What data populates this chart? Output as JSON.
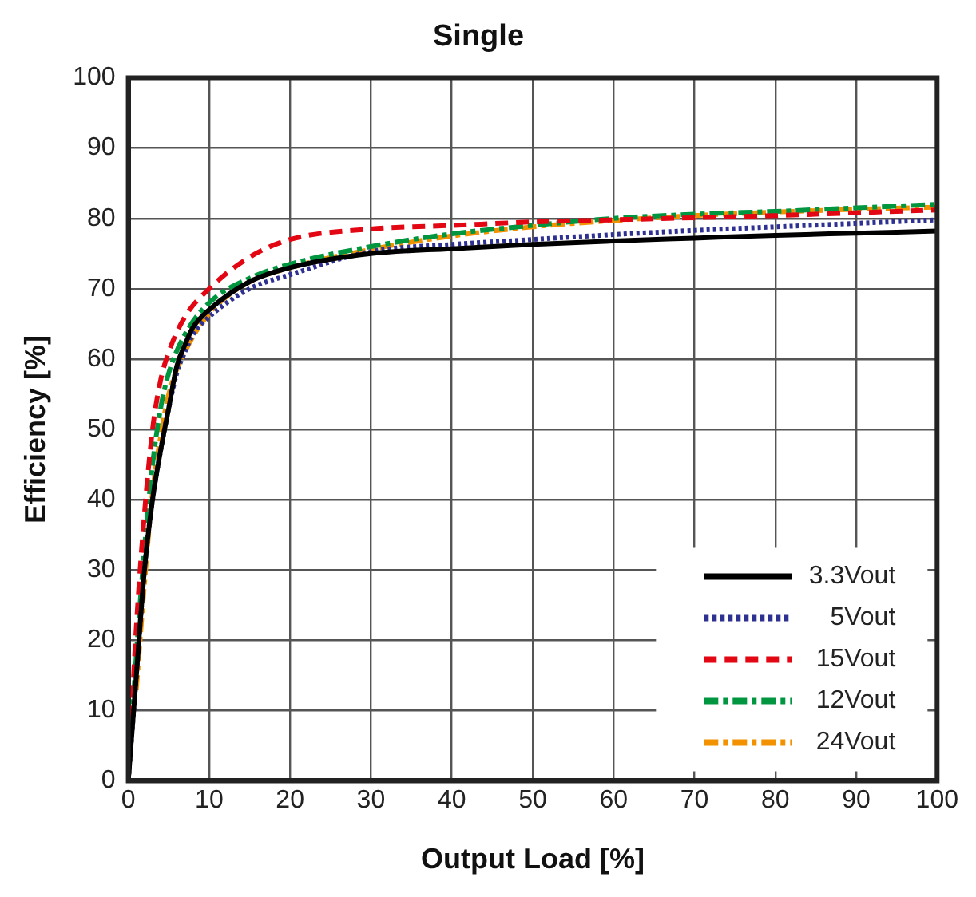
{
  "chart_data": {
    "type": "line",
    "title": "Single",
    "xlabel": "Output Load [%]",
    "ylabel": "Efficiency [%]",
    "xlim": [
      0,
      100
    ],
    "xticks": [
      0,
      10,
      20,
      30,
      40,
      50,
      60,
      70,
      80,
      90,
      100
    ],
    "ylim": [
      0,
      100
    ],
    "yticks": [
      0,
      10,
      20,
      30,
      40,
      50,
      60,
      70,
      80,
      90,
      100
    ],
    "grid": true,
    "legend": "bottom right",
    "marker": "none",
    "series": [
      {
        "name": "3.3Vout",
        "color": "#000000",
        "line_style": "solid",
        "x": [
          0,
          1,
          2,
          3,
          4,
          5,
          6,
          7,
          8,
          10,
          15,
          20,
          30,
          40,
          50,
          60,
          70,
          80,
          90,
          100
        ],
        "values": [
          0,
          15,
          30,
          40,
          47,
          53,
          59,
          62,
          64.5,
          67,
          71,
          73,
          75,
          75.7,
          76.3,
          76.8,
          77.2,
          77.6,
          77.9,
          78.2
        ]
      },
      {
        "name": "5Vout",
        "color": "#2e3192",
        "line_style": "dotted",
        "x": [
          0,
          1,
          2,
          3,
          4,
          5,
          6,
          7,
          8,
          10,
          15,
          20,
          30,
          40,
          50,
          60,
          70,
          80,
          90,
          100
        ],
        "values": [
          0,
          15,
          30,
          40,
          47,
          53,
          58,
          61,
          63.5,
          66,
          70,
          72,
          75.3,
          76.3,
          77,
          77.7,
          78.3,
          78.8,
          79.3,
          79.8
        ]
      },
      {
        "name": "15Vout",
        "color": "#e30613",
        "line_style": "dashed",
        "x": [
          0,
          1,
          2,
          3,
          4,
          5,
          7,
          10,
          15,
          20,
          30,
          40,
          50,
          60,
          70,
          80,
          90,
          100
        ],
        "values": [
          0,
          22,
          38,
          50,
          57,
          61,
          66,
          70,
          74.5,
          77,
          78.5,
          79,
          79.5,
          79.8,
          80.1,
          80.4,
          80.8,
          81.2
        ]
      },
      {
        "name": "12Vout",
        "color": "#009640",
        "line_style": "dashdot",
        "x": [
          0,
          1,
          2,
          3,
          4,
          5,
          7,
          10,
          15,
          20,
          30,
          40,
          50,
          60,
          70,
          80,
          90,
          100
        ],
        "values": [
          0,
          18,
          33,
          45,
          53,
          58,
          63.5,
          68,
          71.5,
          73.5,
          76,
          77.8,
          79,
          80,
          80.6,
          81,
          81.5,
          82
        ]
      },
      {
        "name": "24Vout",
        "color": "#f39200",
        "line_style": "dashdot",
        "x": [
          1,
          2,
          3,
          4,
          5,
          7,
          10,
          15,
          20,
          30,
          40,
          50,
          60,
          70,
          80,
          90,
          100
        ],
        "values": [
          13,
          28,
          41,
          49,
          55,
          61,
          66.5,
          71,
          73,
          75.6,
          77.5,
          78.8,
          79.7,
          80.4,
          80.9,
          81.3,
          81.6
        ]
      }
    ]
  }
}
